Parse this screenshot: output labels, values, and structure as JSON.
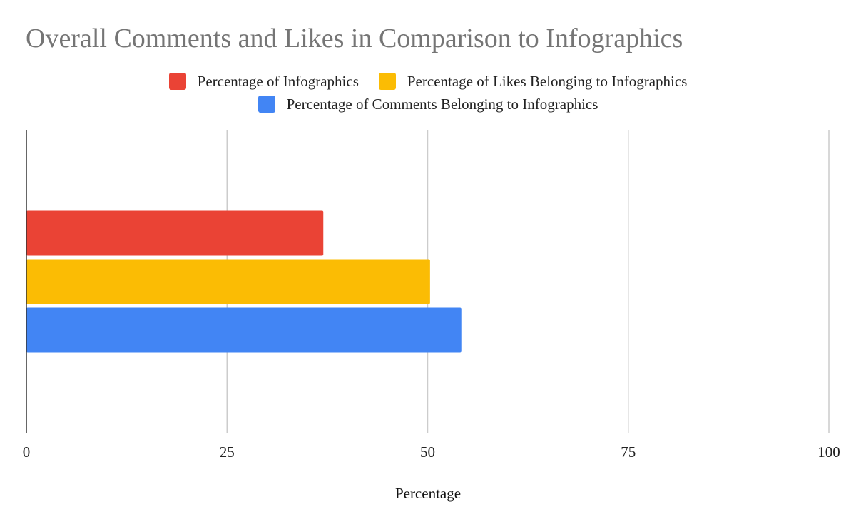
{
  "chart_data": {
    "type": "bar",
    "orientation": "horizontal",
    "title": "Overall Comments and Likes in Comparison to Infographics",
    "xlabel": "Percentage",
    "ylabel": "",
    "xlim": [
      0,
      100
    ],
    "xticks": [
      "0",
      "25",
      "50",
      "75",
      "100"
    ],
    "grid": true,
    "legend_position": "top",
    "series": [
      {
        "name": "Percentage of Infographics",
        "color": "#ea4335",
        "value": 37
      },
      {
        "name": "Percentage of Likes Belonging to Infographics",
        "color": "#fbbc04",
        "value": 50.3
      },
      {
        "name": "Percentage of Comments Belonging to Infographics",
        "color": "#4285f4",
        "value": 54.2
      }
    ]
  }
}
